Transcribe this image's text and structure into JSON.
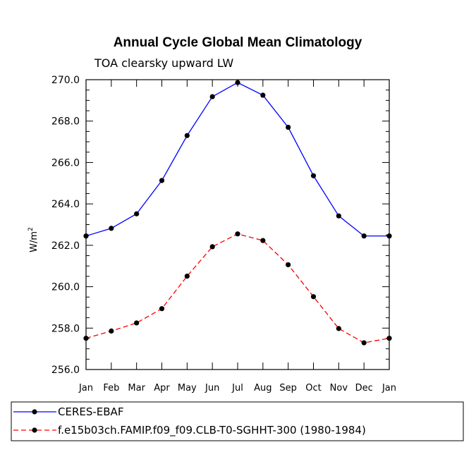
{
  "chart_data": {
    "type": "line",
    "title": "Annual Cycle Global Mean Climatology",
    "subtitle": "TOA clearsky upward LW",
    "ylabel": "W/m",
    "ylabel_superscript": "2",
    "xlabel": "",
    "categories": [
      "Jan",
      "Feb",
      "Mar",
      "Apr",
      "May",
      "Jun",
      "Jul",
      "Aug",
      "Sep",
      "Oct",
      "Nov",
      "Dec",
      "Jan"
    ],
    "ylim": [
      256.0,
      270.0
    ],
    "yticks": [
      256.0,
      258.0,
      260.0,
      262.0,
      264.0,
      266.0,
      268.0,
      270.0
    ],
    "ytick_labels": [
      "256.0",
      "258.0",
      "260.0",
      "262.0",
      "264.0",
      "266.0",
      "268.0",
      "270.0"
    ],
    "grid": false,
    "legend_position": "bottom-left",
    "series": [
      {
        "name": "CERES-EBAF",
        "color": "#0000ff",
        "dash": "solid",
        "values": [
          262.45,
          262.82,
          263.52,
          265.13,
          267.3,
          269.18,
          269.86,
          269.25,
          267.7,
          265.36,
          263.42,
          262.45,
          262.45
        ]
      },
      {
        "name": "f.e15b03ch.FAMIP.f09_f09.CLB-T0-SGHHT-300 (1980-1984)",
        "color": "#ff0000",
        "dash": "dashed",
        "values": [
          257.51,
          257.86,
          258.25,
          258.94,
          260.51,
          261.93,
          262.55,
          262.23,
          261.06,
          259.52,
          257.98,
          257.29,
          257.51
        ]
      }
    ]
  }
}
